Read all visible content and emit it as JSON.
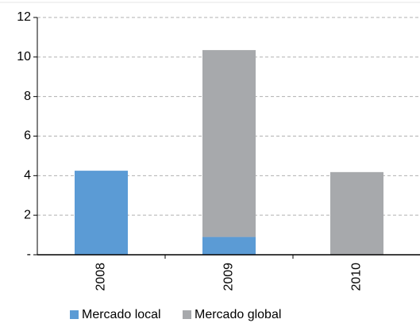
{
  "chart_data": {
    "type": "stacked-bar",
    "categories": [
      "2008",
      "2009",
      "2010"
    ],
    "series": [
      {
        "name": "Mercado local",
        "color": "#5b9bd5",
        "values": [
          4.25,
          0.9,
          0
        ]
      },
      {
        "name": "Mercado global",
        "color": "#a7a9ac",
        "values": [
          0,
          9.45,
          4.18
        ]
      }
    ],
    "ylim": [
      0,
      12
    ],
    "yticks": [
      {
        "value": 0,
        "label": "-"
      },
      2,
      4,
      6,
      8,
      10,
      12
    ],
    "grid": true
  }
}
